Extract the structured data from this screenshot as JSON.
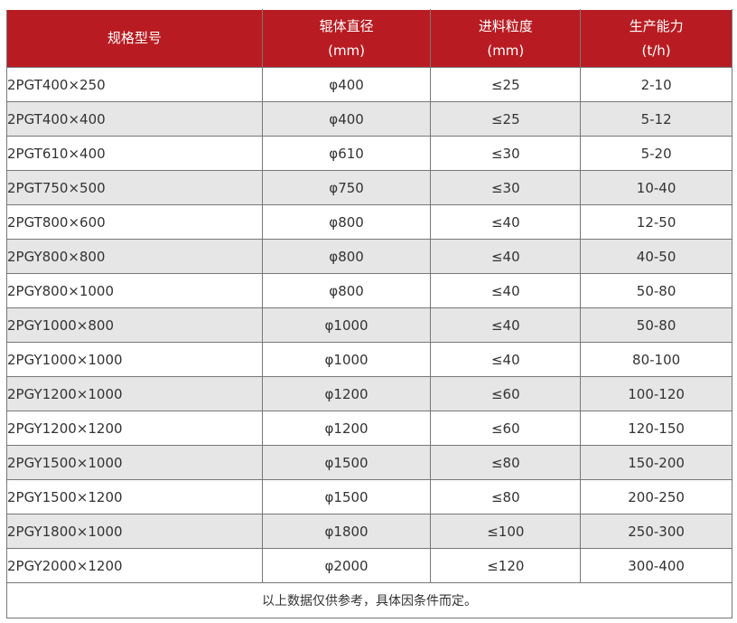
{
  "table": {
    "header": [
      [
        "规格型号"
      ],
      [
        "辊体直径",
        "(mm)"
      ],
      [
        "进料粒度",
        "(mm)"
      ],
      [
        "生产能力",
        "(t/h)"
      ]
    ],
    "rows": [
      [
        "2PGT400×250",
        "φ400",
        "≤25",
        "2-10"
      ],
      [
        "2PGT400×400",
        "φ400",
        "≤25",
        "5-12"
      ],
      [
        "2PGT610×400",
        "φ610",
        "≤30",
        "5-20"
      ],
      [
        "2PGT750×500",
        "φ750",
        "≤30",
        "10-40"
      ],
      [
        "2PGT800×600",
        "φ800",
        "≤40",
        "12-50"
      ],
      [
        "2PGY800×800",
        "φ800",
        "≤40",
        "40-50"
      ],
      [
        "2PGY800×1000",
        "φ800",
        "≤40",
        "50-80"
      ],
      [
        "2PGY1000×800",
        "φ1000",
        "≤40",
        "50-80"
      ],
      [
        "2PGY1000×1000",
        "φ1000",
        "≤40",
        "80-100"
      ],
      [
        "2PGY1200×1000",
        "φ1200",
        "≤60",
        "100-120"
      ],
      [
        "2PGY1200×1200",
        "φ1200",
        "≤60",
        "120-150"
      ],
      [
        "2PGY1500×1000",
        "φ1500",
        "≤80",
        "150-200"
      ],
      [
        "2PGY1500×1200",
        "φ1500",
        "≤80",
        "200-250"
      ],
      [
        "2PGY1800×1000",
        "φ1800",
        "≤100",
        "250-300"
      ],
      [
        "2PGY2000×1200",
        "φ2000",
        "≤120",
        "300-400"
      ]
    ],
    "footer": "以上数据仅供参考，具体因条件而定。"
  }
}
